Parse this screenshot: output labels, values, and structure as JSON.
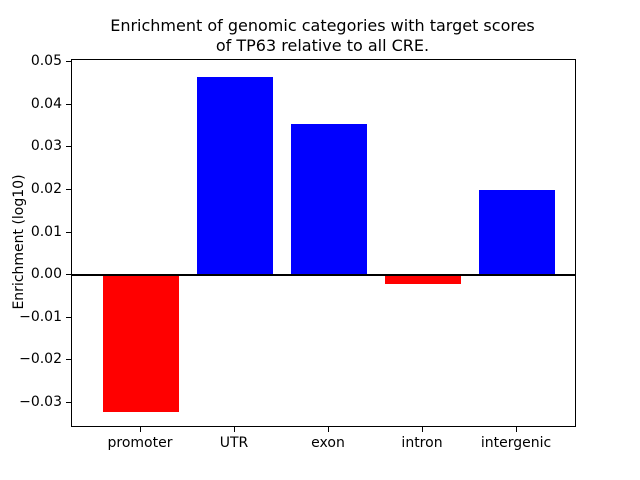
{
  "chart_data": {
    "type": "bar",
    "title": "Enrichment of genomic categories with target scores\nof TP63 relative to all CRE.",
    "xlabel": "",
    "ylabel": "Enrichment (log10)",
    "categories": [
      "promoter",
      "UTR",
      "exon",
      "intron",
      "intergenic"
    ],
    "values": [
      -0.032,
      0.0465,
      0.0355,
      -0.002,
      0.02
    ],
    "bar_colors": [
      "#ff0000",
      "#0000ff",
      "#0000ff",
      "#ff0000",
      "#0000ff"
    ],
    "positive_color": "#0000ff",
    "negative_color": "#ff0000",
    "ylim": [
      -0.0354,
      0.0505
    ],
    "yticks": [
      0.05,
      0.04,
      0.03,
      0.02,
      0.01,
      0.0,
      -0.01,
      -0.02,
      -0.03
    ],
    "ytick_labels": [
      "0.05",
      "0.04",
      "0.03",
      "0.02",
      "0.01",
      "0.00",
      "−0.01",
      "−0.02",
      "−0.03"
    ],
    "grid": false,
    "legend": null,
    "zero_line": true,
    "axis_color": "#000000",
    "background_color": "#ffffff"
  }
}
